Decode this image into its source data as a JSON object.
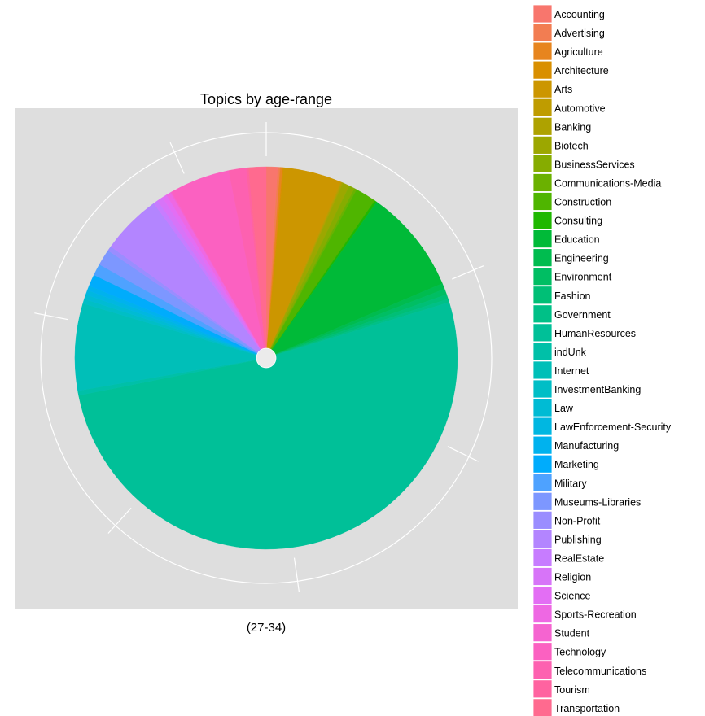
{
  "chart_data": {
    "type": "pie",
    "title": "Topics by age-range",
    "xlabel": "(27-34)",
    "ylabel": "",
    "panel_background": "#DEDEDE",
    "grid_color": "#FFFFFF",
    "legend": {
      "placement": "right"
    },
    "categories": [
      "Accounting",
      "Advertising",
      "Agriculture",
      "Architecture",
      "Arts",
      "Automotive",
      "Banking",
      "Biotech",
      "BusinessServices",
      "Communications-Media",
      "Construction",
      "Consulting",
      "Education",
      "Engineering",
      "Environment",
      "Fashion",
      "Government",
      "HumanResources",
      "indUnk",
      "Internet",
      "InvestmentBanking",
      "Law",
      "LawEnforcement-Security",
      "Manufacturing",
      "Marketing",
      "Military",
      "Museums-Libraries",
      "Non-Profit",
      "Publishing",
      "RealEstate",
      "Religion",
      "Science",
      "Sports-Recreation",
      "Student",
      "Technology",
      "Telecommunications",
      "Tourism",
      "Transportation"
    ],
    "colors": [
      "#F8766D",
      "#F27D52",
      "#E7851E",
      "#D98F00",
      "#CC9600",
      "#BF9C00",
      "#AEA200",
      "#9CA700",
      "#86AC00",
      "#6BB100",
      "#4FB500",
      "#1FB800",
      "#00BA38",
      "#00BC4F",
      "#00BE63",
      "#00BF76",
      "#00C087",
      "#00C098",
      "#00C0A8",
      "#00BFB8",
      "#00BEC6",
      "#00BBD4",
      "#00B7E1",
      "#00B2EE",
      "#00ACFC",
      "#4EA2FF",
      "#7D97FF",
      "#9A8DFF",
      "#B385FF",
      "#C77CFF",
      "#D774F8",
      "#E36EF4",
      "#EE68E3",
      "#F564D0",
      "#FB61C1",
      "#FD61B0",
      "#FF63A0",
      "#FF6A8F"
    ],
    "values": [
      1.0,
      0.2,
      0.2,
      0.1,
      5.0,
      0.1,
      0.1,
      0.6,
      0.5,
      0.2,
      1.8,
      0.2,
      9.0,
      0.5,
      0.5,
      0.4,
      0.3,
      52.6,
      0.4,
      7.5,
      0.4,
      0.4,
      0.4,
      0.4,
      1.0,
      1.0,
      1.4,
      0.4,
      5.2,
      0.4,
      0.5,
      0.4,
      0.4,
      0.1,
      5.2,
      1.5,
      0.2,
      1.5
    ]
  }
}
